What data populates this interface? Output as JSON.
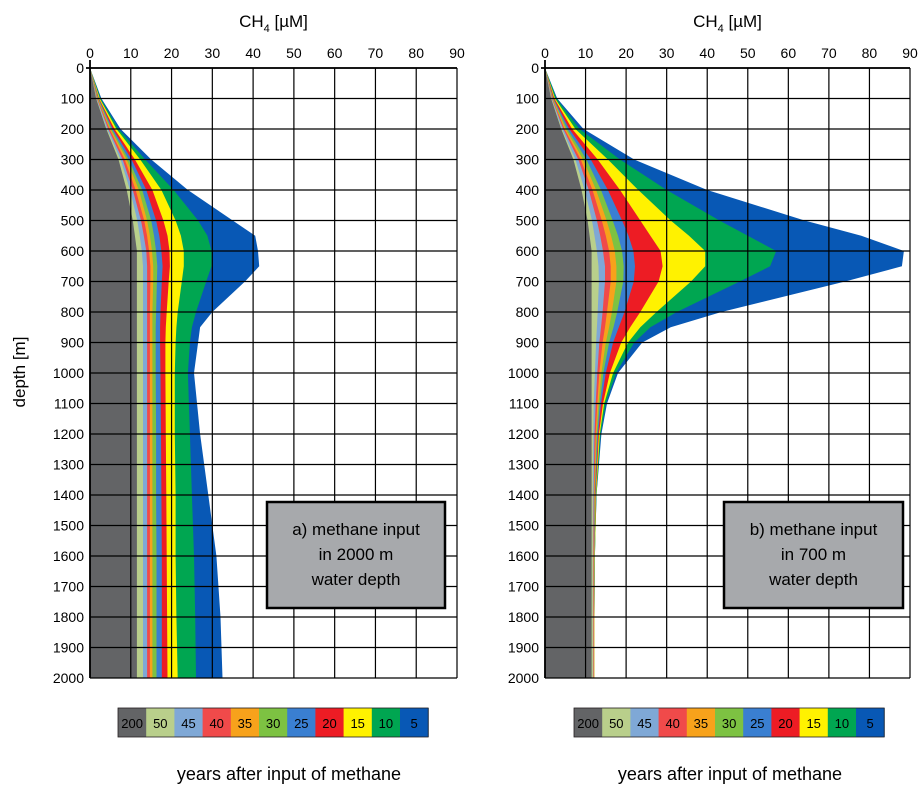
{
  "chart_data": [
    {
      "type": "area",
      "panel": "a",
      "xlabel": "CH4 [µM]",
      "xlabel_main": "CH",
      "xlabel_sub": "4",
      "xlabel_unit": " [µM]",
      "ylabel": "depth [m]",
      "x_axis_position": "top",
      "xlim": [
        0,
        90
      ],
      "ylim": [
        0,
        2000
      ],
      "y_inverted": true,
      "x_ticks": [
        0,
        10,
        20,
        30,
        40,
        50,
        60,
        70,
        80,
        90
      ],
      "y_ticks": [
        0,
        100,
        200,
        300,
        400,
        500,
        600,
        700,
        800,
        900,
        1000,
        1100,
        1200,
        1300,
        1400,
        1500,
        1600,
        1700,
        1800,
        1900,
        2000
      ],
      "grid": true,
      "annotation": [
        "a) methane input",
        "in 2000 m",
        "water depth"
      ],
      "legend_title": "years after input of methane",
      "legend_placement": "bottom",
      "depths": [
        0,
        100,
        200,
        300,
        400,
        500,
        550,
        600,
        650,
        700,
        800,
        850,
        900,
        1000,
        1200,
        1400,
        1600,
        1800,
        2000
      ],
      "series": [
        {
          "name": "200",
          "color": "#636466",
          "values": [
            0,
            1.5,
            4,
            7,
            9,
            10.5,
            11,
            11.5,
            11.5,
            11.5,
            11.5,
            11.5,
            11.5,
            11.5,
            11.5,
            11.5,
            11.5,
            11.5,
            11.5
          ]
        },
        {
          "name": "50",
          "color": "#b9cf8b",
          "values": [
            0,
            1.6,
            4.2,
            7.5,
            9.8,
            11.6,
            12.2,
            12.7,
            13,
            13,
            13,
            13,
            13,
            13,
            13,
            13,
            13,
            13,
            13
          ]
        },
        {
          "name": "45",
          "color": "#7fa8d6",
          "values": [
            0,
            1.7,
            4.5,
            8,
            10.5,
            12.5,
            13.2,
            13.8,
            14,
            14,
            14,
            14,
            14,
            14,
            14,
            14,
            14,
            14,
            14
          ]
        },
        {
          "name": "40",
          "color": "#f04a4a",
          "values": [
            0,
            1.8,
            4.8,
            8.5,
            11.2,
            13.3,
            14,
            14.5,
            14.8,
            14.8,
            14.7,
            14.7,
            14.7,
            14.7,
            14.7,
            14.7,
            14.7,
            14.7,
            14.7
          ]
        },
        {
          "name": "35",
          "color": "#f7a21b",
          "values": [
            0,
            1.9,
            5,
            9,
            12,
            14,
            14.7,
            15.2,
            15.5,
            15.5,
            15.3,
            15.3,
            15.3,
            15.3,
            15.3,
            15.3,
            15.3,
            15.3,
            15.3
          ]
        },
        {
          "name": "30",
          "color": "#7dc242",
          "values": [
            0,
            2,
            5.3,
            9.5,
            12.8,
            15,
            15.7,
            16.2,
            16.5,
            16.4,
            16.2,
            16.1,
            16.1,
            16.1,
            16.2,
            16.2,
            16.3,
            16.3,
            16.3
          ]
        },
        {
          "name": "25",
          "color": "#3a7fd1",
          "values": [
            0,
            2.1,
            5.6,
            10.2,
            13.8,
            16.2,
            17,
            17.5,
            17.8,
            17.6,
            17.3,
            17.2,
            17.2,
            17.3,
            17.4,
            17.5,
            17.6,
            17.6,
            17.6
          ]
        },
        {
          "name": "20",
          "color": "#ed1c24",
          "values": [
            0,
            2.2,
            6,
            11,
            15.3,
            18,
            19,
            19.5,
            19.6,
            19.3,
            18.8,
            18.6,
            18.5,
            18.5,
            18.6,
            18.7,
            18.8,
            18.9,
            19
          ]
        },
        {
          "name": "15",
          "color": "#fff200",
          "values": [
            0,
            2.4,
            6.5,
            12.3,
            17.5,
            21,
            22.3,
            23,
            23,
            22.5,
            21.5,
            21.2,
            21,
            20.8,
            20.8,
            21,
            21,
            21.2,
            21.5
          ]
        },
        {
          "name": "10",
          "color": "#00a651",
          "values": [
            0,
            2.6,
            7,
            13.5,
            20.5,
            26.5,
            28.8,
            29.8,
            29.8,
            28.5,
            26,
            25,
            24.5,
            24,
            24.5,
            25,
            25.5,
            25.8,
            26
          ]
        },
        {
          "name": "5",
          "color": "#0858b5",
          "values": [
            0,
            2.8,
            7.5,
            15,
            24,
            35,
            40.5,
            41.2,
            41.5,
            38,
            30,
            27,
            26.5,
            25.5,
            27,
            29,
            31,
            32,
            32.5
          ]
        }
      ]
    },
    {
      "type": "area",
      "panel": "b",
      "xlabel": "CH4 [µM]",
      "xlabel_main": "CH",
      "xlabel_sub": "4",
      "xlabel_unit": " [µM]",
      "ylabel": "",
      "x_axis_position": "top",
      "xlim": [
        0,
        90
      ],
      "ylim": [
        0,
        2000
      ],
      "y_inverted": true,
      "x_ticks": [
        0,
        10,
        20,
        30,
        40,
        50,
        60,
        70,
        80,
        90
      ],
      "y_ticks": [
        0,
        100,
        200,
        300,
        400,
        500,
        600,
        700,
        800,
        900,
        1000,
        1100,
        1200,
        1300,
        1400,
        1500,
        1600,
        1700,
        1800,
        1900,
        2000
      ],
      "grid": true,
      "annotation": [
        "b) methane input",
        "in 700 m",
        "water depth"
      ],
      "legend_title": "years after input of methane",
      "legend_placement": "bottom",
      "depths": [
        0,
        100,
        200,
        300,
        400,
        500,
        550,
        600,
        650,
        700,
        800,
        850,
        900,
        1000,
        1100,
        1200,
        1400,
        1600,
        1800,
        2000
      ],
      "series": [
        {
          "name": "200",
          "color": "#636466",
          "values": [
            0,
            1.5,
            4,
            7,
            9,
            10.5,
            11,
            11.5,
            11.5,
            11.5,
            11.5,
            11.5,
            11.5,
            11.5,
            11.5,
            11.5,
            11.5,
            11.5,
            11.5,
            11.5
          ]
        },
        {
          "name": "50",
          "color": "#b9cf8b",
          "values": [
            0,
            1.6,
            4.2,
            7.5,
            9.8,
            11.6,
            12.2,
            12.8,
            13.2,
            13.3,
            13,
            12.8,
            12.6,
            12.3,
            12,
            11.9,
            11.8,
            11.8,
            11.8,
            11.8
          ]
        },
        {
          "name": "45",
          "color": "#7fa8d6",
          "values": [
            0,
            1.7,
            4.5,
            8.2,
            10.8,
            12.8,
            13.6,
            14.3,
            14.8,
            14.8,
            14.2,
            13.8,
            13.4,
            12.9,
            12.5,
            12.2,
            12,
            11.9,
            11.9,
            11.9
          ]
        },
        {
          "name": "40",
          "color": "#f04a4a",
          "values": [
            0,
            1.8,
            4.8,
            8.8,
            11.7,
            14,
            15,
            15.8,
            16.2,
            16.2,
            15.3,
            14.8,
            14.2,
            13.4,
            12.9,
            12.5,
            12.1,
            12,
            12,
            12
          ]
        },
        {
          "name": "35",
          "color": "#f7a21b",
          "values": [
            0,
            1.9,
            5.1,
            9.4,
            12.6,
            15.2,
            16.3,
            17.2,
            17.6,
            17.6,
            16.5,
            15.8,
            15,
            13.9,
            13.2,
            12.7,
            12.2,
            12.1,
            12.1,
            12.1
          ]
        },
        {
          "name": "30",
          "color": "#7dc242",
          "values": [
            0,
            2,
            5.5,
            10.2,
            13.8,
            16.7,
            18,
            19,
            19.4,
            19.3,
            17.8,
            16.9,
            15.8,
            14.4,
            13.5,
            12.9,
            12.3,
            12.1,
            12.1,
            12.1
          ]
        },
        {
          "name": "25",
          "color": "#3a7fd1",
          "values": [
            0,
            2.1,
            6,
            11.3,
            15.5,
            19,
            20.6,
            21.8,
            22.2,
            21.9,
            19.6,
            18.2,
            16.8,
            15,
            13.8,
            13.1,
            12.4,
            12.2,
            12.1,
            12.1
          ]
        },
        {
          "name": "20",
          "color": "#ed1c24",
          "values": [
            0,
            2.3,
            6.7,
            13,
            18.5,
            23.5,
            26,
            28.5,
            29,
            28,
            23.5,
            21,
            18.8,
            16,
            14.3,
            13.3,
            12.5,
            12.2,
            12.1,
            12.1
          ]
        },
        {
          "name": "15",
          "color": "#fff200",
          "values": [
            0,
            2.5,
            7.5,
            15.5,
            23,
            31,
            35.5,
            39.5,
            39.5,
            36,
            27.5,
            23.5,
            20.5,
            16.8,
            14.6,
            13.5,
            12.6,
            12.3,
            12.2,
            12.2
          ]
        },
        {
          "name": "10",
          "color": "#00a651",
          "values": [
            0,
            2.8,
            8.5,
            18.5,
            30,
            43,
            50,
            57,
            55.5,
            48,
            32.5,
            26,
            22,
            17.5,
            15,
            13.7,
            12.7,
            12.3,
            12.2,
            12.2
          ]
        },
        {
          "name": "5",
          "color": "#0858b5",
          "values": [
            0,
            3,
            9.5,
            22,
            40,
            64,
            78,
            88.5,
            88,
            74,
            43.5,
            31,
            24,
            18,
            15.3,
            13.9,
            12.7,
            12.3,
            12.2,
            12.2
          ]
        }
      ]
    }
  ]
}
